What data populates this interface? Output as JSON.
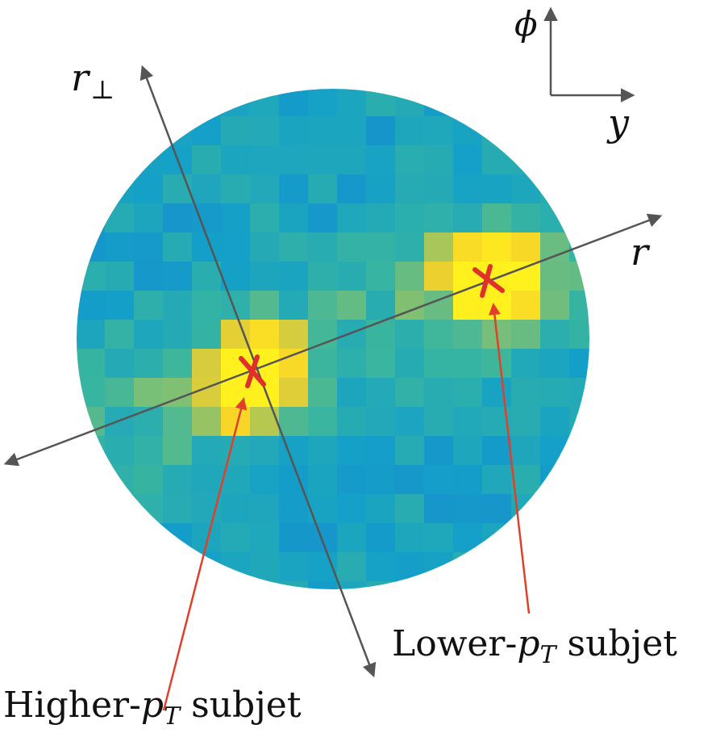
{
  "labels": {
    "phi": "ϕ",
    "y": "y",
    "r_perp_main": "r",
    "r_perp_sub": "⊥",
    "r": "r",
    "lower_prefix": "Lower-",
    "lower_p": "p",
    "lower_sub": "T",
    "lower_suffix": " subjet",
    "higher_prefix": "Higher-",
    "higher_p": "p",
    "higher_sub": "T",
    "higher_suffix": " subjet"
  },
  "colors": {
    "axis": "#555555",
    "annotation_arrow": "#e0402a",
    "marker": "#e0302a",
    "heat_low": "#1f6fd6",
    "heat_mid": "#14a0c8",
    "heat_green": "#38b5a0",
    "heat_high": "#f5d12a",
    "heat_peak": "#fff01e"
  }
}
